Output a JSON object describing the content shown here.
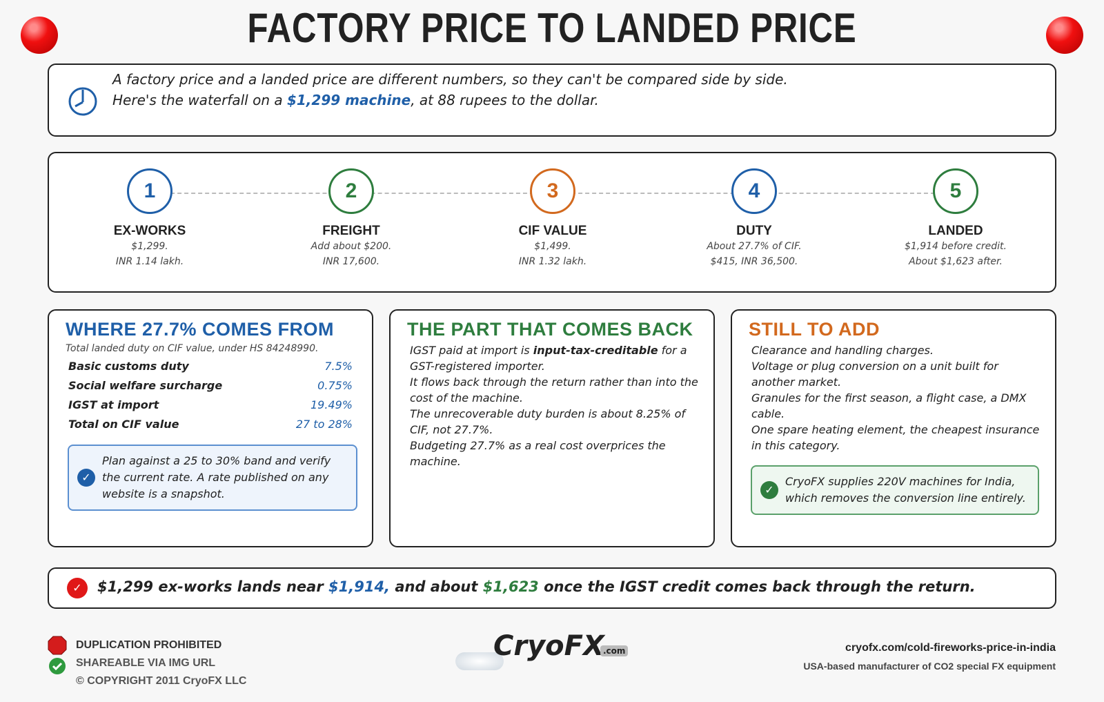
{
  "header": {
    "title": "FACTORY PRICE TO LANDED PRICE"
  },
  "intro": {
    "line1": "A factory price and a landed price are different numbers, so they can't be compared side by side.",
    "line2_before": "Here's the waterfall on a ",
    "line2_highlight": "$1,299 machine",
    "line2_after": ", at 88 rupees to the dollar."
  },
  "steps": [
    {
      "number": "1",
      "label": "EX-WORKS",
      "line1": "$1,299.",
      "line2": "INR 1.14 lakh."
    },
    {
      "number": "2",
      "label": "FREIGHT",
      "line1": "Add about $200.",
      "line2": "INR 17,600."
    },
    {
      "number": "3",
      "label": "CIF VALUE",
      "line1": "$1,499.",
      "line2": "INR 1.32 lakh."
    },
    {
      "number": "4",
      "label": "DUTY",
      "line1": "About 27.7% of CIF.",
      "line2": "$415, INR 36,500."
    },
    {
      "number": "5",
      "label": "LANDED",
      "line1": "$1,914 before credit.",
      "line2": "About $1,623 after."
    }
  ],
  "duty_panel": {
    "title": "WHERE 27.7% COMES FROM",
    "subtitle": "Total landed duty on CIF value, under HS 84248990.",
    "rows": [
      [
        "Basic customs duty",
        "7.5%"
      ],
      [
        "Social welfare surcharge",
        "0.75%"
      ],
      [
        "IGST at import",
        "19.49%"
      ],
      [
        "Total on CIF value",
        "27 to 28%"
      ]
    ],
    "note": "Plan against a 25 to 30% band and verify the current rate. A rate published on any website is a snapshot."
  },
  "credit_panel": {
    "title": "THE PART THAT COMES BACK",
    "p1_before": "IGST paid at import is ",
    "p1_bold": "input-tax-creditable",
    "p1_after": " for a GST-registered importer.",
    "p2": "It flows back through the return rather than into the cost of the machine.",
    "p3": "The unrecoverable duty burden is about 8.25% of CIF, not 27.7%.",
    "p4": "Budgeting 27.7% as a real cost overprices the machine."
  },
  "add_panel": {
    "title": "STILL TO ADD",
    "items": [
      "Clearance and handling charges.",
      "Voltage or plug conversion on a unit built for another market.",
      "Granules for the first season, a flight case, a DMX cable.",
      "One spare heating element, the cheapest insurance in this category."
    ],
    "note": "CryoFX supplies 220V machines for India, which removes the conversion line entirely."
  },
  "conclusion": {
    "part1": "$1,299 ex-works lands near ",
    "part2": "$1,914,",
    "part3": " and about ",
    "part4": "$1,623",
    "part5": " once the IGST credit comes back through the return."
  },
  "footer": {
    "left": [
      "DUPLICATION PROHIBITED",
      "SHAREABLE VIA IMG URL",
      "© COPYRIGHT 2011 CryoFX LLC"
    ],
    "logo": "CryoFX",
    "logo_suffix": ".com",
    "url": "cryofx.com/cold-fireworks-price-in-india",
    "tagline": "USA-based manufacturer of CO2 special FX equipment"
  }
}
